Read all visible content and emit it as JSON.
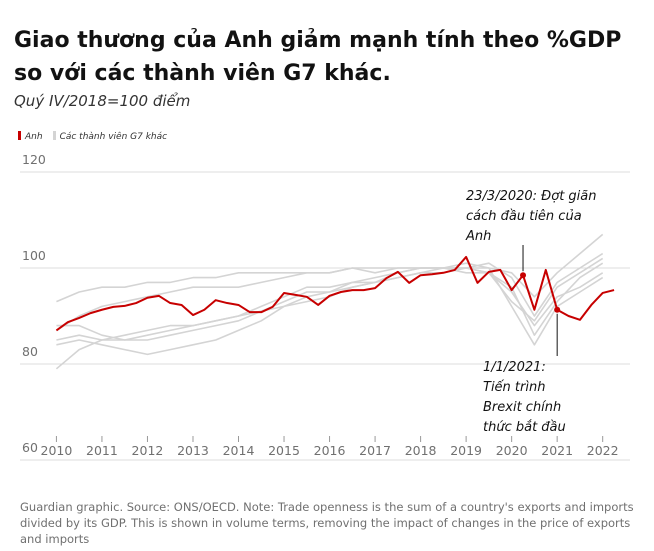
{
  "chart_data": {
    "type": "line",
    "title": "Giao thương của Anh giảm mạnh tính theo %GDP so với các thành viên G7 khác.",
    "subtitle": "Quý IV/2018=100 điểm",
    "source": "Guardian graphic. Source: ONS/OECD. Note: Trade openness is the sum of a country's exports and imports divided by its GDP. This is shown in volume terms, removing the impact of changes in the price of exports and imports",
    "x": [
      2010,
      2010.25,
      2010.5,
      2010.75,
      2011,
      2011.25,
      2011.5,
      2011.75,
      2012,
      2012.25,
      2012.5,
      2012.75,
      2013,
      2013.25,
      2013.5,
      2013.75,
      2014,
      2014.25,
      2014.5,
      2014.75,
      2015,
      2015.25,
      2015.5,
      2015.75,
      2016,
      2016.25,
      2016.5,
      2016.75,
      2017,
      2017.25,
      2017.5,
      2017.75,
      2018,
      2018.25,
      2018.5,
      2018.75,
      2019,
      2019.25,
      2019.5,
      2019.75,
      2020,
      2020.25,
      2020.5,
      2020.75,
      2021,
      2021.25,
      2021.5,
      2021.75,
      2022,
      2022.25
    ],
    "series": [
      {
        "name": "Anh",
        "color": "#c70000",
        "values": [
          87,
          88.7,
          89.6,
          90.6,
          91.3,
          91.9,
          92.1,
          92.7,
          93.8,
          94.2,
          92.7,
          92.3,
          90.2,
          91.3,
          93.3,
          92.7,
          92.3,
          90.8,
          90.8,
          91.9,
          94.8,
          94.4,
          94,
          92.3,
          94.2,
          95,
          95.4,
          95.4,
          95.8,
          97.9,
          99.2,
          96.9,
          98.5,
          98.7,
          99,
          99.6,
          102.3,
          96.9,
          99.2,
          99.6,
          95.4,
          98.5,
          91.3,
          99.6,
          91.3,
          90,
          89.2,
          92.3,
          94.8,
          95.4
        ]
      },
      {
        "name": "Các thành viên G7 khác",
        "color": "#d4d4d4",
        "x": [
          2010,
          2010.5,
          2011,
          2011.5,
          2012,
          2012.5,
          2013,
          2013.5,
          2014,
          2014.5,
          2015,
          2015.5,
          2016,
          2016.5,
          2017,
          2017.5,
          2018,
          2018.5,
          2019,
          2019.5,
          2020,
          2020.5,
          2021,
          2021.5,
          2022
        ],
        "values": [
          93,
          95,
          96,
          96,
          97,
          97,
          98,
          98,
          99,
          99,
          99,
          99,
          99,
          100,
          100,
          100,
          100,
          100,
          100,
          100,
          99,
          94,
          99,
          103,
          107
        ]
      },
      {
        "color": "#d4d4d4",
        "x": [
          2010,
          2010.5,
          2011,
          2011.5,
          2012,
          2012.5,
          2013,
          2013.5,
          2014,
          2014.5,
          2015,
          2015.5,
          2016,
          2016.5,
          2017,
          2017.5,
          2018,
          2018.5,
          2019,
          2019.5,
          2020,
          2020.5,
          2021,
          2021.5,
          2022
        ],
        "values": [
          87,
          90,
          92,
          93,
          94,
          95,
          96,
          96,
          96,
          97,
          98,
          99,
          99,
          100,
          99,
          100,
          100,
          100,
          100,
          101,
          98,
          90,
          97,
          100,
          103
        ]
      },
      {
        "color": "#d4d4d4",
        "x": [
          2010,
          2010.5,
          2011,
          2011.5,
          2012,
          2012.5,
          2013,
          2013.5,
          2014,
          2014.5,
          2015,
          2015.5,
          2016,
          2016.5,
          2017,
          2017.5,
          2018,
          2018.5,
          2019,
          2019.5,
          2020,
          2020.5,
          2021,
          2021.5,
          2022
        ],
        "values": [
          79,
          83,
          85,
          86,
          87,
          88,
          88,
          89,
          90,
          91,
          93,
          95,
          95,
          96,
          97,
          98,
          99,
          99,
          100,
          99,
          96,
          86,
          93,
          98,
          101
        ]
      },
      {
        "color": "#d4d4d4",
        "x": [
          2010,
          2010.5,
          2011,
          2011.5,
          2012,
          2012.5,
          2013,
          2013.5,
          2014,
          2014.5,
          2015,
          2015.5,
          2016,
          2016.5,
          2017,
          2017.5,
          2018,
          2018.5,
          2019,
          2019.5,
          2020,
          2020.5,
          2021,
          2021.5,
          2022
        ],
        "values": [
          85,
          86,
          85,
          85,
          86,
          87,
          88,
          89,
          90,
          92,
          94,
          96,
          96,
          97,
          98,
          99,
          100,
          100,
          100,
          99,
          95,
          88,
          94,
          96,
          99
        ]
      },
      {
        "color": "#d4d4d4",
        "x": [
          2010,
          2010.5,
          2011,
          2011.5,
          2012,
          2012.5,
          2013,
          2013.5,
          2014,
          2014.5,
          2015,
          2015.5,
          2016,
          2016.5,
          2017,
          2017.5,
          2018,
          2018.5,
          2019,
          2019.5,
          2020,
          2020.5,
          2021,
          2021.5,
          2022
        ],
        "values": [
          88,
          88,
          86,
          85,
          85,
          86,
          87,
          88,
          89,
          91,
          92,
          93,
          94,
          96,
          97,
          98,
          99,
          100,
          101,
          100,
          92,
          84,
          92,
          95,
          98
        ]
      },
      {
        "color": "#d4d4d4",
        "x": [
          2010,
          2010.5,
          2011,
          2011.5,
          2012,
          2012.5,
          2013,
          2013.5,
          2014,
          2014.5,
          2015,
          2015.5,
          2016,
          2016.5,
          2017,
          2017.5,
          2018,
          2018.5,
          2019,
          2019.5,
          2020,
          2020.5,
          2021,
          2021.5,
          2022
        ],
        "values": [
          84,
          85,
          84,
          83,
          82,
          83,
          84,
          85,
          87,
          89,
          92,
          94,
          95,
          97,
          97,
          99,
          100,
          100,
          99,
          99,
          93,
          89,
          96,
          99,
          102
        ]
      }
    ],
    "annotations": [
      {
        "lines": [
          "23/3/2020: Đợt giãn",
          "cách đầu tiên của",
          "Anh"
        ],
        "x": 2020.25
      },
      {
        "lines": [
          "1/1/2021:",
          "Tiến trình",
          "Brexit chính",
          "thức bắt đầu"
        ],
        "x": 2021
      }
    ],
    "xlim": [
      2009.2,
      2022.6
    ],
    "xticks": [
      2010,
      2011,
      2012,
      2013,
      2014,
      2015,
      2016,
      2017,
      2018,
      2019,
      2020,
      2021,
      2022
    ],
    "ylim": [
      60,
      120
    ],
    "yticks": [
      60,
      80,
      100,
      120
    ],
    "grid": true
  }
}
